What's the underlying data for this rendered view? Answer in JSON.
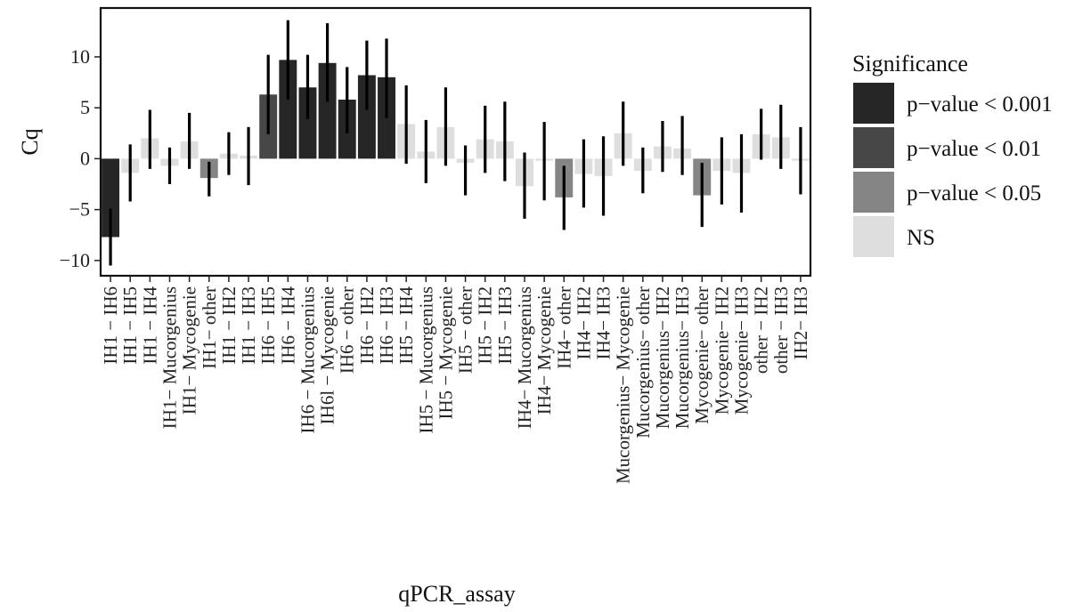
{
  "chart_data": {
    "type": "bar",
    "title": "",
    "xlabel": "qPCR_assay",
    "ylabel": "Cq",
    "ylim": [
      -11.5,
      14.8
    ],
    "yticks": [
      -10,
      -5,
      0,
      5,
      10
    ],
    "grid": false,
    "legend": {
      "title": "Significance",
      "placement": "right",
      "entries": [
        {
          "label": "p−value < 0.001",
          "color": "#262626"
        },
        {
          "label": "p−value < 0.01",
          "color": "#474747"
        },
        {
          "label": "p−value < 0.05",
          "color": "#858585"
        },
        {
          "label": "NS",
          "color": "#dedede"
        }
      ]
    },
    "categories": [
      "IH1 − IH6",
      "IH1 − IH5",
      "IH1 − IH4",
      "IH1− Mucorgenius",
      "IH1− Mycogenie",
      "IH1− other",
      "IH1 − IH2",
      "IH1 − IH3",
      "IH6 − IH5",
      "IH6 − IH4",
      "IH6 − Mucorgenius",
      "IH6l − Mycogenie",
      "IH6 − other",
      "IH6 − IH2",
      "IH6 − IH3",
      "IH5 − IH4",
      "IH5 − Mucorgenius",
      "IH5 − Mycogenie",
      "IH5 − other",
      "IH5 − IH2",
      "IH5 − IH3",
      "IH4− Mucorgenius",
      "IH4− Mycogenie",
      "IH4− other",
      "IH4− IH2",
      "IH4− IH3",
      "Mucorgenius− Mycogenie",
      "Mucorgenius− other",
      "Mucorgenius− IH2",
      "Mucorgenius− IH3",
      "Mycogenie− other",
      "Mycogenie− IH2",
      "Mycogenie− IH3",
      "other − IH2",
      "other − IH3",
      "IH2− IH3"
    ],
    "values": [
      -7.7,
      -1.4,
      2.0,
      -0.7,
      1.7,
      -1.9,
      0.5,
      0.3,
      6.3,
      9.7,
      7.0,
      9.4,
      5.8,
      8.2,
      8.0,
      3.4,
      0.7,
      3.1,
      -0.4,
      1.9,
      1.7,
      -2.7,
      -0.2,
      -3.8,
      -1.5,
      -1.7,
      2.5,
      -1.2,
      1.2,
      1.0,
      -3.6,
      -1.2,
      -1.4,
      2.4,
      2.1,
      -0.2
    ],
    "error_low": [
      -10.5,
      -4.2,
      -1.0,
      -2.5,
      -1.0,
      -3.7,
      -1.6,
      -2.6,
      2.4,
      5.8,
      3.9,
      5.6,
      2.5,
      4.8,
      4.0,
      -0.5,
      -2.4,
      -0.7,
      -3.6,
      -1.4,
      -2.2,
      -5.9,
      -4.1,
      -7.0,
      -4.8,
      -5.6,
      -0.7,
      -3.4,
      -1.3,
      -1.6,
      -6.7,
      -4.5,
      -5.3,
      -0.1,
      -1.0,
      -3.5
    ],
    "error_high": [
      -4.9,
      1.4,
      4.8,
      1.1,
      4.5,
      -0.3,
      2.6,
      3.1,
      10.2,
      13.6,
      10.2,
      13.3,
      9.0,
      11.6,
      11.8,
      7.2,
      3.8,
      7.0,
      1.3,
      5.2,
      5.6,
      0.6,
      3.6,
      -0.7,
      1.9,
      2.2,
      5.6,
      1.1,
      3.7,
      4.2,
      -0.4,
      2.1,
      2.4,
      4.9,
      5.3,
      3.1
    ],
    "significance": [
      0,
      3,
      3,
      3,
      3,
      2,
      3,
      3,
      1,
      0,
      0,
      0,
      0,
      0,
      0,
      3,
      3,
      3,
      3,
      3,
      3,
      3,
      3,
      2,
      3,
      3,
      3,
      3,
      3,
      3,
      2,
      3,
      3,
      3,
      3,
      3
    ]
  }
}
